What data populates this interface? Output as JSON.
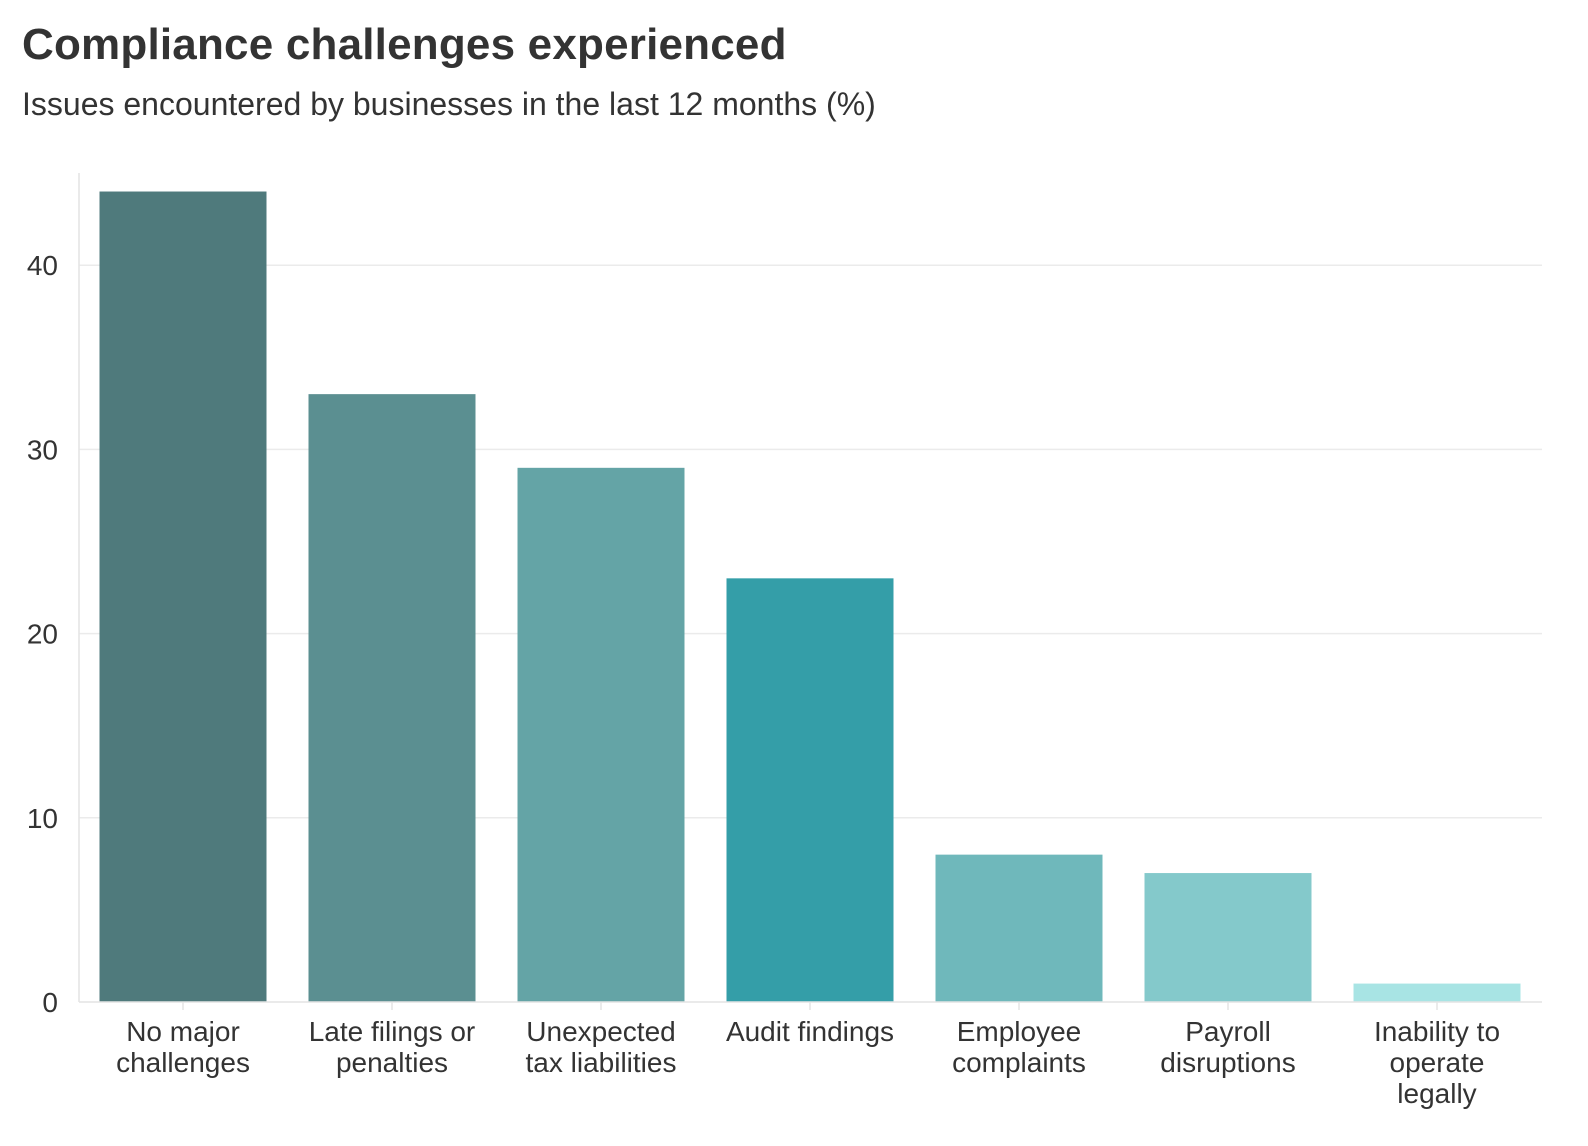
{
  "chart": {
    "title": "Compliance challenges experienced",
    "subtitle": "Issues encountered by businesses in the last 12 months (%)"
  },
  "chart_data": {
    "type": "bar",
    "title": "Compliance challenges experienced",
    "subtitle": "Issues encountered by businesses in the last 12 months (%)",
    "xlabel": "",
    "ylabel": "",
    "categories": [
      [
        "No major",
        "challenges"
      ],
      [
        "Late filings or",
        "penalties"
      ],
      [
        "Unexpected",
        "tax liabilities"
      ],
      [
        "Audit findings"
      ],
      [
        "Employee",
        "complaints"
      ],
      [
        "Payroll",
        "disruptions"
      ],
      [
        "Inability to",
        "operate",
        "legally"
      ]
    ],
    "values": [
      44,
      33,
      29,
      23,
      8,
      7,
      1
    ],
    "colors": [
      "#4f7a7c",
      "#5b8f91",
      "#64a4a6",
      "#349ea8",
      "#6fb8bb",
      "#84c9cb",
      "#a8e4e4"
    ],
    "ylim": [
      0,
      45
    ],
    "yticks": [
      0,
      10,
      20,
      30,
      40
    ],
    "grid": true,
    "legend": "none"
  }
}
